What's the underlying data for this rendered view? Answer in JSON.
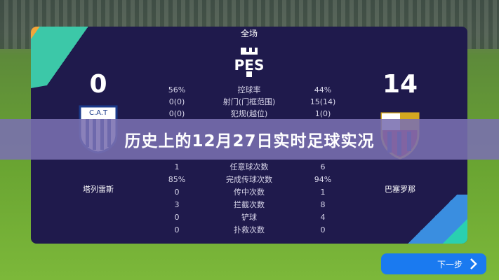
{
  "header": {
    "period": "全场"
  },
  "home": {
    "score": "0",
    "name": "塔列雷斯",
    "badge_text": "C.A.T"
  },
  "away": {
    "score": "14",
    "name": "巴塞罗那"
  },
  "stats": [
    {
      "label": "控球率",
      "home": "56%",
      "away": "44%"
    },
    {
      "label": "射门(门框范围)",
      "home": "0(0)",
      "away": "15(14)"
    },
    {
      "label": "犯规(越位)",
      "home": "0(0)",
      "away": "1(0)"
    },
    {
      "label": "任意球次数",
      "home": "1",
      "away": "6"
    },
    {
      "label": "完成传球次数",
      "home": "85%",
      "away": "94%"
    },
    {
      "label": "传中次数",
      "home": "0",
      "away": "1"
    },
    {
      "label": "拦截次数",
      "home": "3",
      "away": "8"
    },
    {
      "label": "铲球",
      "home": "0",
      "away": "4"
    },
    {
      "label": "扑救次数",
      "home": "0",
      "away": "0"
    }
  ],
  "banner": {
    "title": "历史上的12月27日实时足球实况"
  },
  "next_button": {
    "label": "下一步",
    "icon": "chevron-right-icon"
  },
  "colors": {
    "panel": "#1f1a4c",
    "button": "#1a7af0",
    "banner": "#7a70b0"
  }
}
